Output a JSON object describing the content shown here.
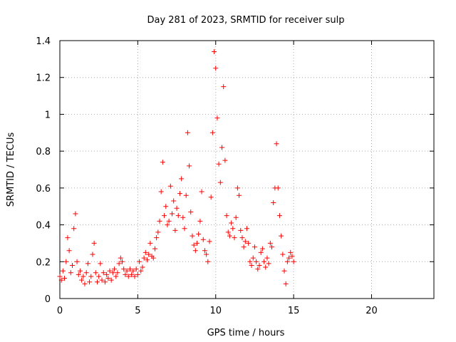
{
  "chart_data": {
    "type": "scatter",
    "title": "Day 281 of 2023, SRMTID for receiver sulp",
    "xlabel": "GPS time / hours",
    "ylabel": "SRMTID / TECUs",
    "xlim": [
      0,
      24
    ],
    "ylim": [
      0,
      1.4
    ],
    "xticks": [
      0,
      5,
      10,
      15,
      20
    ],
    "yticks": [
      0,
      0.2,
      0.4,
      0.6,
      0.8,
      1,
      1.2,
      1.4
    ],
    "xtick_labels": [
      "0",
      "5",
      "10",
      "15",
      "20"
    ],
    "ytick_labels": [
      "0",
      "0.2",
      "0.4",
      "0.6",
      "0.8",
      "1",
      "1.2",
      "1.4"
    ],
    "grid": true,
    "marker": "+",
    "color": "#ff0000",
    "series": [
      {
        "name": "sulp",
        "x": [
          0.0,
          0.1,
          0.2,
          0.3,
          0.4,
          0.5,
          0.6,
          0.7,
          0.8,
          0.9,
          1.0,
          1.1,
          1.2,
          1.3,
          1.4,
          1.5,
          1.6,
          1.7,
          1.8,
          1.9,
          2.0,
          2.1,
          2.2,
          2.3,
          2.4,
          2.5,
          2.6,
          2.7,
          2.8,
          2.9,
          3.0,
          3.1,
          3.2,
          3.3,
          3.4,
          3.5,
          3.6,
          3.7,
          3.8,
          3.9,
          4.0,
          4.1,
          4.2,
          4.3,
          4.4,
          4.5,
          4.6,
          4.7,
          4.8,
          4.9,
          5.0,
          5.1,
          5.2,
          5.3,
          5.4,
          5.5,
          5.6,
          5.7,
          5.8,
          5.9,
          6.0,
          6.1,
          6.2,
          6.3,
          6.4,
          6.5,
          6.6,
          6.7,
          6.8,
          6.9,
          7.0,
          7.1,
          7.2,
          7.3,
          7.4,
          7.5,
          7.6,
          7.7,
          7.8,
          7.9,
          8.0,
          8.1,
          8.2,
          8.3,
          8.4,
          8.5,
          8.6,
          8.7,
          8.8,
          8.9,
          9.0,
          9.1,
          9.2,
          9.3,
          9.4,
          9.5,
          9.6,
          9.7,
          9.8,
          9.9,
          10.0,
          10.1,
          10.2,
          10.3,
          10.4,
          10.5,
          10.6,
          10.7,
          10.8,
          10.9,
          11.0,
          11.1,
          11.2,
          11.3,
          11.4,
          11.5,
          11.6,
          11.7,
          11.8,
          11.9,
          12.0,
          12.1,
          12.2,
          12.3,
          12.4,
          12.5,
          12.6,
          12.7,
          12.8,
          12.9,
          13.0,
          13.1,
          13.2,
          13.3,
          13.4,
          13.5,
          13.6,
          13.7,
          13.8,
          13.9,
          14.0,
          14.1,
          14.2,
          14.3,
          14.4,
          14.5,
          14.6,
          14.7,
          14.8,
          14.9,
          15.0
        ],
        "y": [
          0.12,
          0.1,
          0.15,
          0.11,
          0.2,
          0.33,
          0.26,
          0.14,
          0.18,
          0.38,
          0.46,
          0.2,
          0.13,
          0.15,
          0.1,
          0.12,
          0.08,
          0.14,
          0.19,
          0.09,
          0.12,
          0.24,
          0.3,
          0.14,
          0.09,
          0.12,
          0.19,
          0.1,
          0.14,
          0.09,
          0.13,
          0.11,
          0.15,
          0.1,
          0.14,
          0.16,
          0.12,
          0.14,
          0.19,
          0.22,
          0.2,
          0.16,
          0.13,
          0.15,
          0.12,
          0.16,
          0.13,
          0.15,
          0.12,
          0.16,
          0.13,
          0.2,
          0.15,
          0.17,
          0.22,
          0.25,
          0.21,
          0.24,
          0.3,
          0.23,
          0.22,
          0.27,
          0.33,
          0.36,
          0.42,
          0.58,
          0.74,
          0.45,
          0.5,
          0.4,
          0.42,
          0.61,
          0.46,
          0.53,
          0.37,
          0.49,
          0.45,
          0.57,
          0.65,
          0.44,
          0.38,
          0.56,
          0.9,
          0.72,
          0.47,
          0.34,
          0.29,
          0.26,
          0.3,
          0.35,
          0.42,
          0.58,
          0.32,
          0.26,
          0.24,
          0.2,
          0.31,
          0.55,
          0.9,
          1.34,
          1.25,
          0.98,
          0.73,
          0.63,
          0.82,
          1.15,
          0.75,
          0.45,
          0.36,
          0.34,
          0.41,
          0.38,
          0.33,
          0.44,
          0.6,
          0.56,
          0.37,
          0.33,
          0.28,
          0.31,
          0.38,
          0.3,
          0.2,
          0.18,
          0.22,
          0.28,
          0.2,
          0.16,
          0.18,
          0.25,
          0.27,
          0.2,
          0.17,
          0.22,
          0.19,
          0.3,
          0.28,
          0.52,
          0.6,
          0.84,
          0.6,
          0.45,
          0.34,
          0.24,
          0.15,
          0.08,
          0.2,
          0.22,
          0.25,
          0.23,
          0.2
        ]
      }
    ]
  }
}
